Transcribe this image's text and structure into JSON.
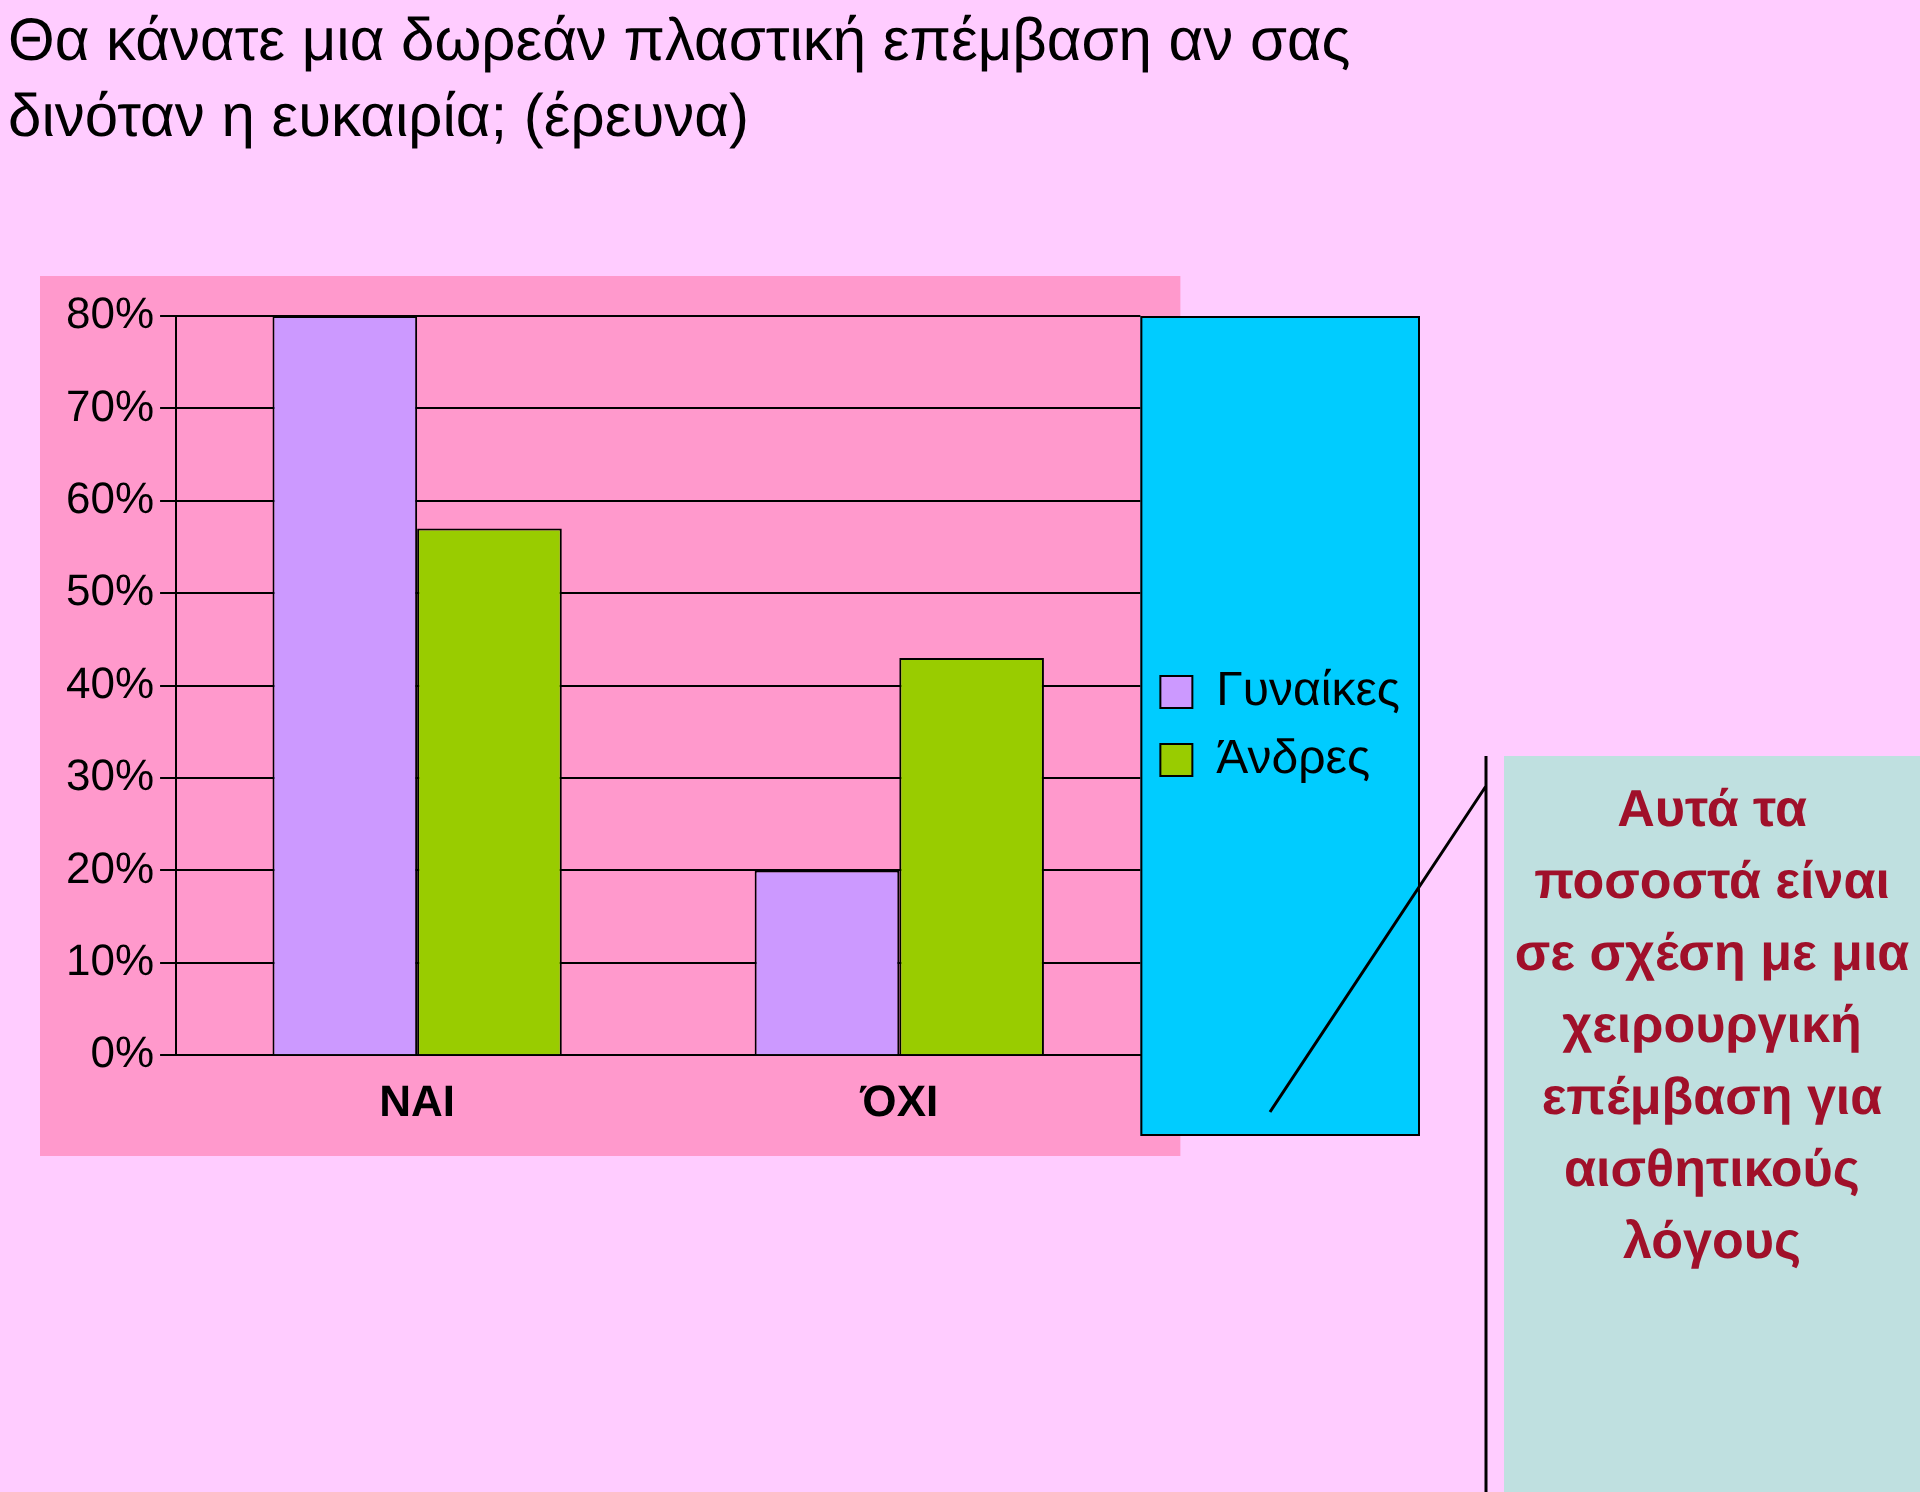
{
  "chart_data": {
    "type": "bar",
    "title": "Θα κάνατε μια δωρεάν πλαστική επέμβαση αν σας δινόταν η ευκαιρία; (έρευνα)",
    "categories": [
      "ΝΑΙ",
      "ΌΧΙ"
    ],
    "series": [
      {
        "name": "Γυναίκες",
        "color": "#cc99ff",
        "values": [
          80,
          20
        ]
      },
      {
        "name": "Άνδρες",
        "color": "#99cc00",
        "values": [
          57,
          43
        ]
      }
    ],
    "ylim": [
      0,
      80
    ],
    "yticks": [
      {
        "value": 0,
        "label": "0%"
      },
      {
        "value": 10,
        "label": "10%"
      },
      {
        "value": 20,
        "label": "20%"
      },
      {
        "value": 30,
        "label": "30%"
      },
      {
        "value": 40,
        "label": "40%"
      },
      {
        "value": 50,
        "label": "50%"
      },
      {
        "value": 60,
        "label": "60%"
      },
      {
        "value": 70,
        "label": "70%"
      },
      {
        "value": 80,
        "label": "80%"
      }
    ],
    "grid": "y",
    "legend": "right",
    "annotations": [
      "Αυτά τα ποσοστά είναι σε σχέση με μια χειρουργική επέμβαση για αισθητικούς λόγους"
    ]
  }
}
